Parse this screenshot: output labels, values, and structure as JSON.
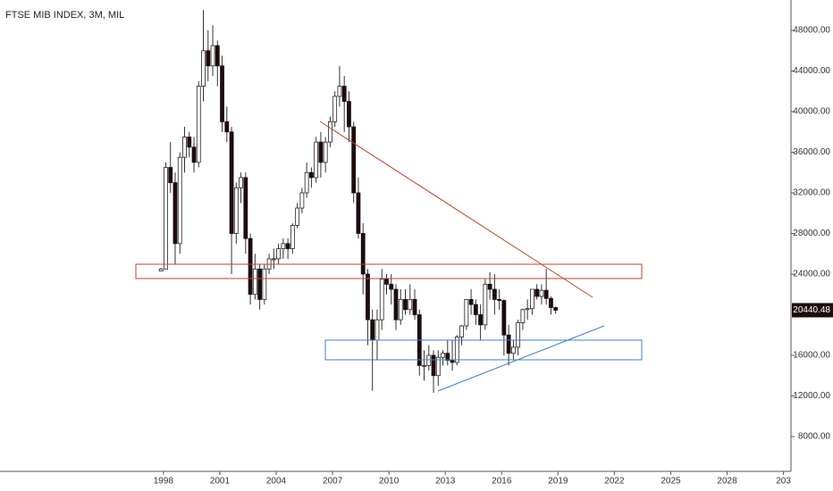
{
  "chart_data": {
    "type": "candlestick",
    "title": "FTSE MIB INDEX, 3M, MIL",
    "x": [
      1997.75,
      1998,
      1998.25,
      1998.5,
      1998.75,
      1999,
      1999.25,
      1999.5,
      1999.75,
      2000,
      2000.25,
      2000.5,
      2000.75,
      2001,
      2001.25,
      2001.5,
      2001.75,
      2002,
      2002.25,
      2002.5,
      2002.75,
      2003,
      2003.25,
      2003.5,
      2003.75,
      2004,
      2004.25,
      2004.5,
      2004.75,
      2005,
      2005.25,
      2005.5,
      2005.75,
      2006,
      2006.25,
      2006.5,
      2006.75,
      2007,
      2007.25,
      2007.5,
      2007.75,
      2008,
      2008.25,
      2008.5,
      2008.75,
      2009,
      2009.25,
      2009.5,
      2009.75,
      2010,
      2010.25,
      2010.5,
      2010.75,
      2011,
      2011.25,
      2011.5,
      2011.75,
      2012,
      2012.25,
      2012.5,
      2012.75,
      2013,
      2013.25,
      2013.5,
      2013.75,
      2014,
      2014.25,
      2014.5,
      2014.75,
      2015,
      2015.25,
      2015.5,
      2015.75,
      2016,
      2016.25,
      2016.5,
      2016.75,
      2017,
      2017.25,
      2017.5,
      2017.75,
      2018,
      2018.25,
      2018.5,
      2018.75
    ],
    "open": [
      24300,
      24500,
      34500,
      33000,
      27000,
      35500,
      37500,
      36500,
      35000,
      42500,
      46000,
      44500,
      46500,
      44500,
      39000,
      38000,
      28000,
      32500,
      33500,
      27500,
      22000,
      24500,
      21500,
      24500,
      25500,
      25500,
      26500,
      27000,
      26500,
      28800,
      30500,
      32000,
      34000,
      33500,
      37000,
      35000,
      37000,
      39000,
      41500,
      42500,
      41000,
      38500,
      32000,
      28000,
      24000,
      19500,
      17500,
      19500,
      23500,
      23000,
      22500,
      19500,
      21500,
      20500,
      21500,
      20000,
      15000,
      15000,
      16000,
      14000,
      15800,
      16200,
      15500,
      15300,
      17800,
      18900,
      21500,
      21000,
      20000,
      19000,
      23000,
      22500,
      21500,
      21400,
      18000,
      16200,
      16800,
      19200,
      20500,
      20600,
      22500,
      21800,
      22400,
      21600,
      20700
    ],
    "high": [
      24600,
      35000,
      37000,
      34000,
      36000,
      38500,
      38000,
      37500,
      43000,
      50000,
      48000,
      48500,
      47000,
      45500,
      40500,
      38500,
      33000,
      34000,
      34000,
      28000,
      26000,
      25000,
      25000,
      26000,
      26500,
      27000,
      27500,
      27500,
      29000,
      31000,
      32500,
      35000,
      34500,
      37500,
      38000,
      37500,
      39500,
      42000,
      44500,
      43500,
      42000,
      39000,
      33500,
      29000,
      24500,
      20500,
      20500,
      24500,
      24000,
      24000,
      23000,
      22500,
      22500,
      23000,
      22500,
      20500,
      16500,
      17000,
      16500,
      16500,
      16500,
      17500,
      17500,
      18000,
      19000,
      21500,
      22500,
      21500,
      21000,
      23500,
      24200,
      24000,
      22500,
      21500,
      19000,
      17500,
      19500,
      20600,
      21500,
      22500,
      23000,
      23000,
      24500,
      21800,
      20800
    ],
    "low": [
      24300,
      24500,
      32000,
      25000,
      26000,
      34000,
      35500,
      34000,
      34500,
      41000,
      43000,
      43500,
      42500,
      38000,
      37000,
      24000,
      27000,
      31000,
      26000,
      21000,
      21500,
      20500,
      21000,
      24000,
      24500,
      25000,
      25500,
      25500,
      26000,
      28500,
      30000,
      31500,
      32500,
      33000,
      33500,
      34000,
      36500,
      38500,
      40500,
      38000,
      37000,
      31000,
      27500,
      22000,
      17000,
      12500,
      15500,
      18500,
      22000,
      21000,
      18500,
      19000,
      20000,
      20000,
      19500,
      14000,
      13500,
      14500,
      12300,
      13000,
      15000,
      15000,
      14500,
      15000,
      17000,
      18500,
      20000,
      19000,
      17500,
      18500,
      21500,
      20000,
      20500,
      16000,
      15000,
      15500,
      16000,
      18500,
      19500,
      20000,
      21500,
      21000,
      21000,
      20000,
      20100
    ],
    "close": [
      24500,
      34500,
      33000,
      27000,
      35500,
      37500,
      36500,
      35000,
      42500,
      46000,
      44500,
      46500,
      44500,
      39000,
      38000,
      28000,
      32500,
      33500,
      27500,
      22000,
      24500,
      21500,
      24500,
      25500,
      25500,
      26500,
      27000,
      26500,
      28800,
      30500,
      32000,
      34000,
      33500,
      37000,
      35000,
      37000,
      39000,
      41500,
      42500,
      41000,
      38500,
      32000,
      28000,
      24000,
      19500,
      17500,
      19500,
      23500,
      23000,
      22500,
      19500,
      21500,
      20500,
      21500,
      20000,
      15000,
      15000,
      16000,
      14000,
      15800,
      16200,
      15500,
      15300,
      17800,
      18900,
      21500,
      21000,
      20000,
      19000,
      23000,
      22500,
      21500,
      21400,
      18000,
      16200,
      16800,
      19200,
      20500,
      20600,
      22500,
      21800,
      22400,
      21600,
      20700,
      20440.48
    ],
    "up_color": "#ffffff",
    "down_color": "#1e0b0b",
    "last_price": 20440.48,
    "xlim": [
      1989.3,
      2031.4
    ],
    "ylim": [
      4570,
      50990
    ],
    "xticks": [
      1998,
      2001,
      2004,
      2007,
      2010,
      2013,
      2016,
      2019,
      2022,
      2025,
      2028,
      {
        "value": 2031,
        "label": "203"
      }
    ],
    "yticks": [
      {
        "value": 8000,
        "label": "8000.00"
      },
      {
        "value": 12000,
        "label": "12000.00"
      },
      {
        "value": 16000,
        "label": "16000.00"
      },
      {
        "value": 24000,
        "label": "24000.00"
      },
      {
        "value": 28000,
        "label": "28000.00"
      },
      {
        "value": 32000,
        "label": "32000.00"
      },
      {
        "value": 36000,
        "label": "36000.00"
      },
      {
        "value": 40000,
        "label": "40000.00"
      },
      {
        "value": 44000,
        "label": "44000.00"
      },
      {
        "value": 48000,
        "label": "48000.00"
      }
    ]
  }
}
